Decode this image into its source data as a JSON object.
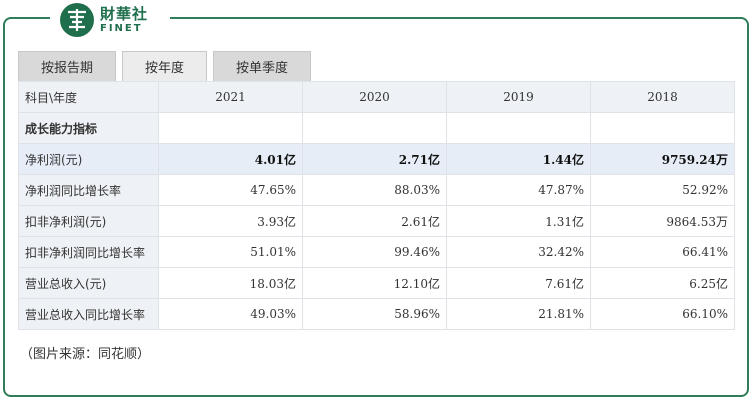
{
  "brand": {
    "cn": "財華社",
    "en": "FINET",
    "mark_char": "華"
  },
  "tabs": [
    {
      "label": "按报告期",
      "active": false
    },
    {
      "label": "按年度",
      "active": true
    },
    {
      "label": "按单季度",
      "active": false
    }
  ],
  "table": {
    "header": {
      "label": "科目\\年度",
      "years": [
        "2021",
        "2020",
        "2019",
        "2018"
      ]
    },
    "section": "成长能力指标",
    "rows": [
      {
        "label": "净利润(元)",
        "values": [
          "4.01亿",
          "2.71亿",
          "1.44亿",
          "9759.24万"
        ],
        "highlight": true
      },
      {
        "label": "净利润同比增长率",
        "values": [
          "47.65%",
          "88.03%",
          "47.87%",
          "52.92%"
        ],
        "highlight": false
      },
      {
        "label": "扣非净利润(元)",
        "values": [
          "3.93亿",
          "2.61亿",
          "1.31亿",
          "9864.53万"
        ],
        "highlight": false
      },
      {
        "label": "扣非净利润同比增长率",
        "values": [
          "51.01%",
          "99.46%",
          "32.42%",
          "66.41%"
        ],
        "highlight": false
      },
      {
        "label": "营业总收入(元)",
        "values": [
          "18.03亿",
          "12.10亿",
          "7.61亿",
          "6.25亿"
        ],
        "highlight": false
      },
      {
        "label": "营业总收入同比增长率",
        "values": [
          "49.03%",
          "58.96%",
          "21.81%",
          "66.10%"
        ],
        "highlight": false
      }
    ]
  },
  "source": "（图片来源：同花顺）",
  "colors": {
    "brand_green": "#1f6e4c",
    "frame": "#2f7d5a",
    "label_bg": "#eef1f5",
    "highlight_bg": "#e6edf7"
  }
}
